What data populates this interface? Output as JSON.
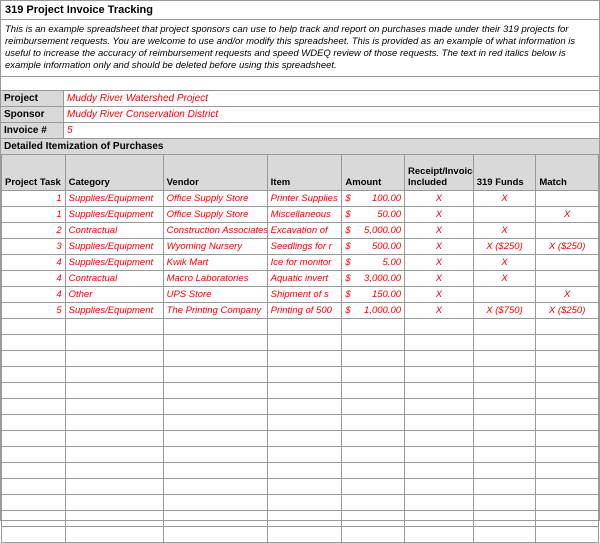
{
  "title": "319 Project Invoice Tracking",
  "description": "This is an example spreadsheet that project sponsors can use to help track and report on purchases made under their 319 projects for reimbursement requests. You are welcome to use and/or modify this spreadsheet. This is provided as an example of what information is useful to increase the accuracy of reimbursement requests and speed WDEQ review of those requests. The text in red italics below is example information only and should be deleted before using this spreadsheet.",
  "info": {
    "project_label": "Project",
    "project_value": "Muddy River Watershed Project",
    "sponsor_label": "Sponsor",
    "sponsor_value": "Muddy River Conservation District",
    "invoice_label": "Invoice #",
    "invoice_value": "5"
  },
  "section_header": "Detailed Itemization of Purchases",
  "columns": [
    "Project Task",
    "Category",
    "Vendor",
    "Item",
    "Amount",
    "Receipt/Invoice Included",
    "319 Funds",
    "Match"
  ],
  "rows": [
    {
      "task": "1",
      "category": "Supplies/Equipment",
      "vendor": "Office Supply Store",
      "item": "Printer Supplies",
      "currency": "$",
      "amount": "100.00",
      "receipt": "X",
      "funds": "X",
      "match": ""
    },
    {
      "task": "1",
      "category": "Supplies/Equipment",
      "vendor": "Office Supply Store",
      "item": "Miscellaneous",
      "currency": "$",
      "amount": "50.00",
      "receipt": "X",
      "funds": "",
      "match": "X"
    },
    {
      "task": "2",
      "category": "Contractual",
      "vendor": "Construction Associates",
      "item": "Excavation of",
      "currency": "$",
      "amount": "5,000.00",
      "receipt": "X",
      "funds": "X",
      "match": ""
    },
    {
      "task": "3",
      "category": "Supplies/Equipment",
      "vendor": "Wyoming Nursery",
      "item": "Seedlings for r",
      "currency": "$",
      "amount": "500.00",
      "receipt": "X",
      "funds": "X ($250)",
      "match": "X ($250)"
    },
    {
      "task": "4",
      "category": "Supplies/Equipment",
      "vendor": "Kwik Mart",
      "item": "Ice for monitor",
      "currency": "$",
      "amount": "5.00",
      "receipt": "X",
      "funds": "X",
      "match": ""
    },
    {
      "task": "4",
      "category": "Contractual",
      "vendor": "Macro Laboratories",
      "item": "Aquatic invert",
      "currency": "$",
      "amount": "3,000.00",
      "receipt": "X",
      "funds": "X",
      "match": ""
    },
    {
      "task": "4",
      "category": "Other",
      "vendor": "UPS Store",
      "item": "Shipment of s",
      "currency": "$",
      "amount": "150.00",
      "receipt": "X",
      "funds": "",
      "match": "X"
    },
    {
      "task": "5",
      "category": "Supplies/Equipment",
      "vendor": "The Printing Company",
      "item": "Printing of 500",
      "currency": "$",
      "amount": "1,000.00",
      "receipt": "X",
      "funds": "X ($750)",
      "match": "X ($250)"
    }
  ],
  "empty_rows": 14,
  "colors": {
    "header_bg": "#d9d9d9",
    "red_text": "#ff0000",
    "border": "#999999",
    "background": "#ffffff"
  }
}
